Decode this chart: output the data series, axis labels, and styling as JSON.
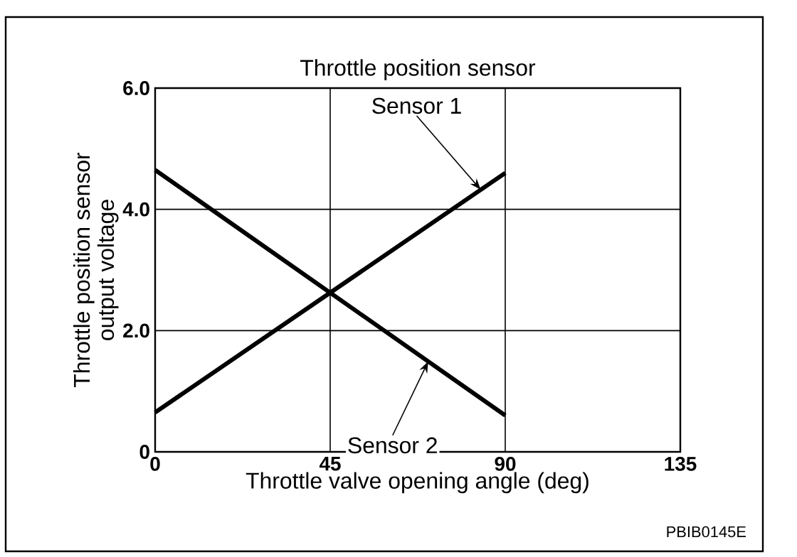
{
  "chart_data": {
    "type": "line",
    "title": "Throttle position sensor",
    "xlabel": "Throttle valve opening angle (deg)",
    "ylabel": "Throttle position sensor\noutput voltage",
    "x": [
      0,
      90
    ],
    "series": [
      {
        "name": "Sensor 1",
        "color": "#000000",
        "values": [
          0.65,
          4.6
        ]
      },
      {
        "name": "Sensor 2",
        "color": "#000000",
        "values": [
          4.65,
          0.6
        ]
      }
    ],
    "xlim": [
      0,
      135
    ],
    "xticks": [
      0,
      45,
      90,
      135
    ],
    "ylim": [
      0,
      6
    ],
    "yticks": [
      0,
      {
        "value": 2,
        "label": "2.0"
      },
      {
        "value": 4,
        "label": "4.0"
      },
      {
        "value": 6,
        "label": "6.0"
      }
    ],
    "grid": true,
    "legend": false,
    "marker": "none",
    "line_style": "solid",
    "annotations": [
      "PBIB0145E"
    ]
  }
}
